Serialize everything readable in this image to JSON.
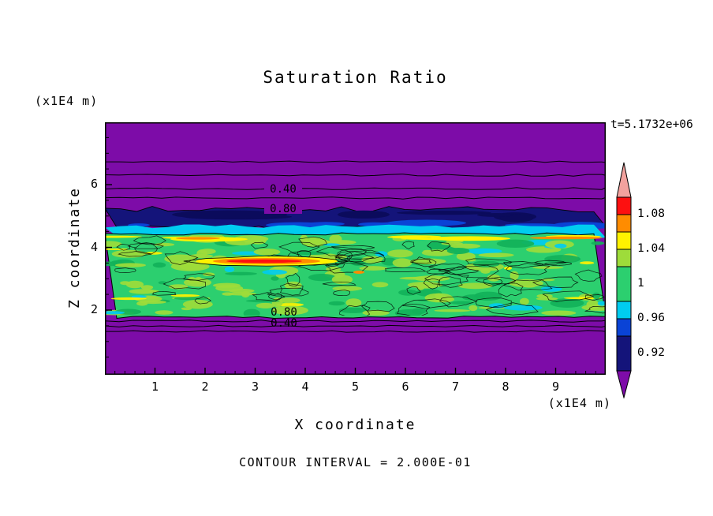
{
  "chart_data": {
    "type": "heatmap",
    "title": "Saturation Ratio",
    "xlabel": "X coordinate",
    "ylabel": "Z coordinate",
    "x_unit": "(x1E4 m)",
    "y_unit": "(x1E4 m)",
    "time_label": "t=5.1732e+06",
    "contour_interval_text": "CONTOUR INTERVAL = 2.000E-01",
    "contour_interval": 0.2,
    "x_ticks": [
      "1",
      "2",
      "3",
      "4",
      "5",
      "6",
      "7",
      "8",
      "9"
    ],
    "y_ticks": [
      "2",
      "4",
      "6"
    ],
    "x_range": [
      0,
      10
    ],
    "y_range": [
      0,
      8
    ],
    "grid": false,
    "legend_position": "right-colorbar",
    "colorbar": {
      "labels": [
        "1.08",
        "1.04",
        "1",
        "0.96",
        "0.92"
      ],
      "segment_colors_top_to_bottom": [
        "#fd1010",
        "#ff8c00",
        "#fff200",
        "#9edc3a",
        "#2ccf6f",
        "#00ccf0",
        "#0a43d6",
        "#14147a"
      ],
      "arrow_up_color": "#f2a29e",
      "arrow_down_color": "#7d0ca8"
    },
    "contour_line_labels": {
      "upper": [
        "0.40",
        "0.80"
      ],
      "lower": [
        "0.80",
        "0.40"
      ]
    },
    "palette": {
      "purple": "#7d0ca8",
      "navy": "#14147a",
      "blue": "#0a43d6",
      "cyan": "#00ccf0",
      "green": "#2ccf6f",
      "green_dark": "#12b259",
      "yellow_green": "#9edc3a",
      "yellow": "#fff200",
      "orange": "#ff8c00",
      "red": "#fd1010"
    },
    "field_bands": [
      {
        "z_range": [
          5.9,
          8.0
        ],
        "saturation_ratio": "< 0.2 (purple)"
      },
      {
        "z_range": [
          5.2,
          5.9
        ],
        "saturation_ratio": "0.2-0.8, contour lines labeled 0.40 and 0.80"
      },
      {
        "z_range": [
          4.7,
          5.2
        ],
        "saturation_ratio": "0.88-0.96 dark blue layer"
      },
      {
        "z_range": [
          4.5,
          4.7
        ],
        "saturation_ratio": "~0.96 cyan strip"
      },
      {
        "z_range": [
          1.8,
          4.5
        ],
        "saturation_ratio": "~1.0 turbulent green layer with patches 1.04-1.08"
      },
      {
        "z_range": [
          1.5,
          1.8
        ],
        "saturation_ratio": "0.8-0.2, contour lines labeled 0.80 and 0.40"
      },
      {
        "z_range": [
          0.0,
          1.5
        ],
        "saturation_ratio": "< 0.2 (purple)"
      }
    ],
    "notable_feature": "elongated supersaturation streak (>1.08, red/orange core) near x=2.5-4, z=3.6"
  }
}
